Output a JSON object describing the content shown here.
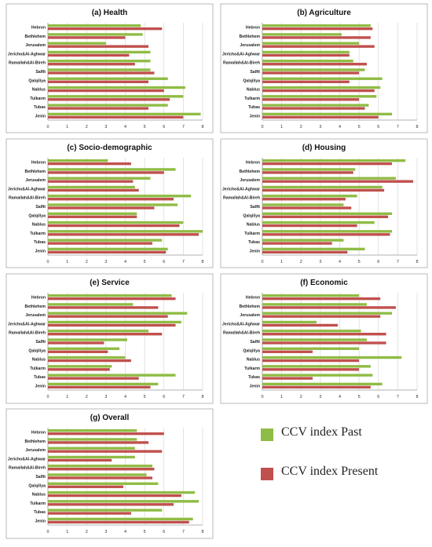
{
  "colors": {
    "past": "#8fbc45",
    "present": "#c0504d",
    "grid": "#d0d0d0",
    "panel_border": "#b9b9b9"
  },
  "legend": {
    "past_label": "CCV index Past",
    "present_label": "CCV index Present"
  },
  "chart_data": [
    {
      "type": "bar",
      "orientation": "horizontal",
      "title": "(a) Health",
      "categories": [
        "Hebron",
        "Bethlehem",
        "Jerusalem",
        "Jericho&Al-Aghwar",
        "Ramallah&Al-Bireh",
        "Salfit",
        "Qalqiliya",
        "Nablus",
        "Tulkarm",
        "Tubas",
        "Jenin"
      ],
      "series": [
        {
          "name": "CCV index Past",
          "values": [
            4.8,
            4.9,
            3.0,
            5.3,
            5.3,
            5.3,
            6.2,
            7.1,
            7.0,
            6.2,
            7.9
          ]
        },
        {
          "name": "CCV index Present",
          "values": [
            5.9,
            4.0,
            5.2,
            4.2,
            4.5,
            5.5,
            5.2,
            6.0,
            6.3,
            5.2,
            7.0
          ]
        }
      ],
      "xlim": [
        0,
        8
      ],
      "xticks": [
        0,
        1,
        2,
        3,
        4,
        5,
        6,
        7,
        8
      ]
    },
    {
      "type": "bar",
      "orientation": "horizontal",
      "title": "(b) Agriculture",
      "categories": [
        "Hebron",
        "Bethlehem",
        "Jerusalem",
        "Jericho&Al-Aghwar",
        "Ramallah&Al-Bireh",
        "Salfit",
        "Qalqiliya",
        "Nablus",
        "Tulkarm",
        "Tubas",
        "Jenin"
      ],
      "series": [
        {
          "name": "CCV index Past",
          "values": [
            5.6,
            4.1,
            5.0,
            4.5,
            4.7,
            5.3,
            6.2,
            6.1,
            5.9,
            5.5,
            6.7
          ]
        },
        {
          "name": "CCV index Present",
          "values": [
            5.7,
            5.6,
            5.8,
            4.5,
            5.4,
            5.0,
            4.5,
            5.8,
            5.0,
            5.3,
            6.0
          ]
        }
      ],
      "xlim": [
        0,
        8
      ],
      "xticks": [
        0,
        1,
        2,
        3,
        4,
        5,
        6,
        7,
        8
      ]
    },
    {
      "type": "bar",
      "orientation": "horizontal",
      "title": "(c) Socio-demographic",
      "categories": [
        "Hebron",
        "Bethlehem",
        "Jerusalem",
        "Jericho&Al-Aghwar",
        "Ramallah&Al-Bireh",
        "Salfit",
        "Qalqiliya",
        "Nablus",
        "Tulkarm",
        "Tubas",
        "Jenin"
      ],
      "series": [
        {
          "name": "CCV index Past",
          "values": [
            3.1,
            6.6,
            5.3,
            4.5,
            7.4,
            6.7,
            4.6,
            7.0,
            8.0,
            5.9,
            6.2
          ]
        },
        {
          "name": "CCV index Present",
          "values": [
            4.3,
            6.0,
            4.4,
            4.7,
            6.5,
            5.5,
            4.6,
            6.8,
            7.8,
            5.4,
            6.1
          ]
        }
      ],
      "xlim": [
        0,
        8
      ],
      "xticks": [
        0,
        1,
        2,
        3,
        4,
        5,
        6,
        7,
        8
      ]
    },
    {
      "type": "bar",
      "orientation": "horizontal",
      "title": "(d) Housing",
      "categories": [
        "Hebron",
        "Bethlehem",
        "Jerusalem",
        "Jericho&Al-Aghwar",
        "Ramallah&Al-Bireh",
        "Salfit",
        "Qalqiliya",
        "Nablus",
        "Tulkarm",
        "Tubas",
        "Jenin"
      ],
      "series": [
        {
          "name": "CCV index Past",
          "values": [
            7.4,
            4.8,
            6.9,
            6.2,
            4.9,
            4.2,
            6.7,
            5.8,
            6.7,
            4.2,
            5.3
          ]
        },
        {
          "name": "CCV index Present",
          "values": [
            6.7,
            4.7,
            7.8,
            6.3,
            4.3,
            4.6,
            6.5,
            4.9,
            6.6,
            3.6,
            4.4
          ]
        }
      ],
      "xlim": [
        0,
        8
      ],
      "xticks": [
        0,
        1,
        2,
        3,
        4,
        5,
        6,
        7,
        8
      ]
    },
    {
      "type": "bar",
      "orientation": "horizontal",
      "title": "(e) Service",
      "categories": [
        "Hebron",
        "Bethlehem",
        "Jerusalem",
        "Jericho&Al-Aghwar",
        "Ramallah&Al-Bireh",
        "Salfit",
        "Qalqiliya",
        "Nablus",
        "Tulkarm",
        "Tubas",
        "Jenin"
      ],
      "series": [
        {
          "name": "CCV index Past",
          "values": [
            6.4,
            4.4,
            7.2,
            6.9,
            5.2,
            4.1,
            3.7,
            4.0,
            3.3,
            6.6,
            5.7
          ]
        },
        {
          "name": "CCV index Present",
          "values": [
            6.6,
            5.7,
            6.2,
            6.6,
            5.9,
            2.9,
            3.1,
            4.3,
            3.2,
            4.7,
            5.3
          ]
        }
      ],
      "xlim": [
        0,
        8
      ],
      "xticks": [
        0,
        1,
        2,
        3,
        4,
        5,
        6,
        7,
        8
      ]
    },
    {
      "type": "bar",
      "orientation": "horizontal",
      "title": "(f) Economic",
      "categories": [
        "Hebron",
        "Bethlehem",
        "Jerusalem",
        "Jericho&Al-Aghwar",
        "Ramallah&Al-Bireh",
        "Salfit",
        "Qalqiliya",
        "Nablus",
        "Tulkarm",
        "Tubas",
        "Jenin"
      ],
      "series": [
        {
          "name": "CCV index Past",
          "values": [
            5.0,
            5.4,
            6.7,
            2.8,
            5.1,
            5.4,
            5.0,
            7.2,
            5.6,
            5.7,
            6.2
          ]
        },
        {
          "name": "CCV index Present",
          "values": [
            6.1,
            6.9,
            6.1,
            3.9,
            6.4,
            6.4,
            2.6,
            5.0,
            5.0,
            2.6,
            5.6
          ]
        }
      ],
      "xlim": [
        0,
        8
      ],
      "xticks": [
        0,
        1,
        2,
        3,
        4,
        5,
        6,
        7,
        8
      ]
    },
    {
      "type": "bar",
      "orientation": "horizontal",
      "title": "(g) Overall",
      "categories": [
        "Hebron",
        "Bethlehem",
        "Jerusalem",
        "Jericho&Al-Aghwar",
        "Ramallah&Al-Bireh",
        "Salfit",
        "Qalqiliya",
        "Nablus",
        "Tulkarm",
        "Tubas",
        "Jenin"
      ],
      "series": [
        {
          "name": "CCV index Past",
          "values": [
            4.6,
            4.6,
            4.5,
            4.5,
            5.4,
            5.1,
            5.7,
            7.6,
            7.8,
            5.9,
            7.5
          ]
        },
        {
          "name": "CCV index Present",
          "values": [
            6.0,
            5.2,
            5.9,
            3.3,
            5.5,
            5.4,
            3.9,
            6.9,
            6.5,
            4.3,
            7.3
          ]
        }
      ],
      "xlim": [
        0,
        8
      ],
      "xticks": [
        0,
        1,
        2,
        3,
        4,
        5,
        6,
        7,
        8
      ]
    }
  ]
}
